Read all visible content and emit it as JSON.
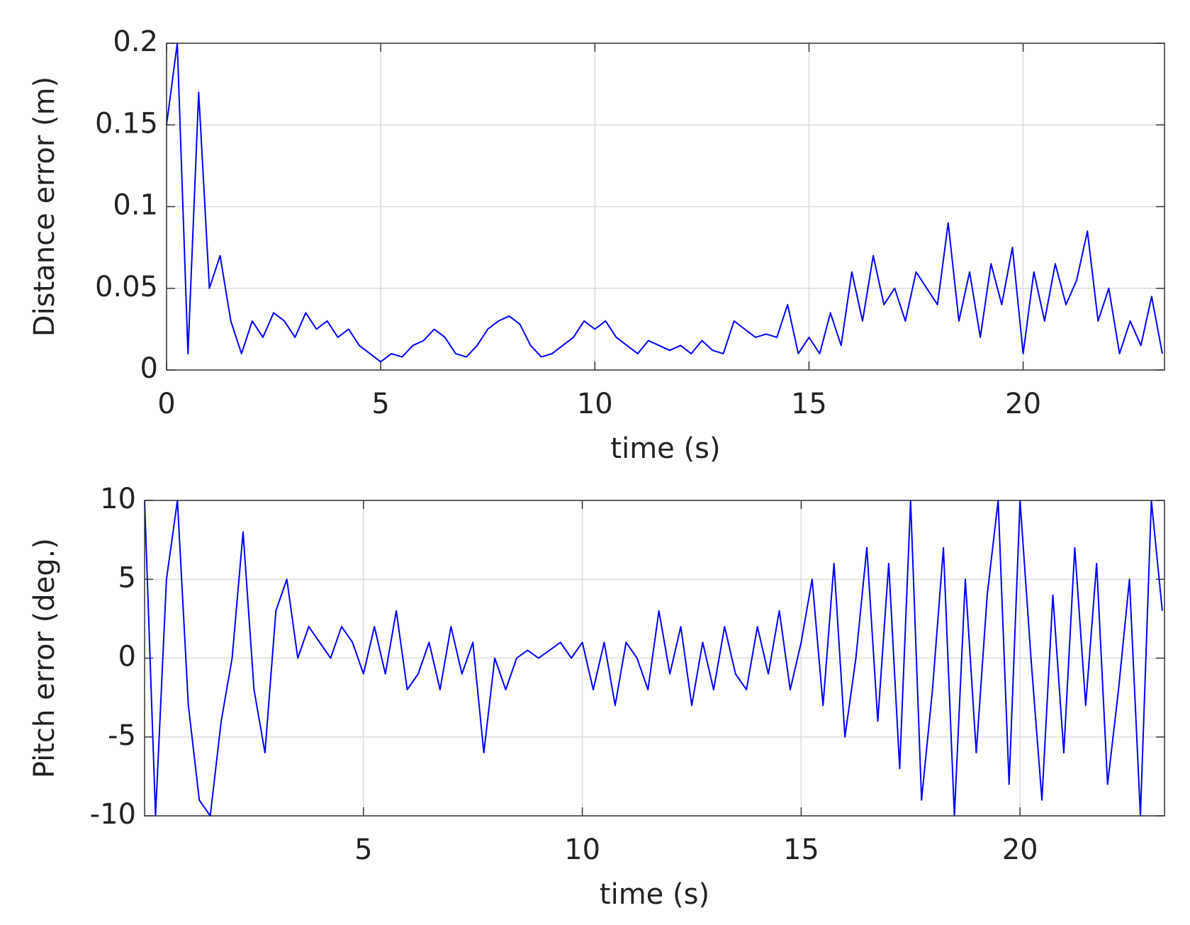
{
  "chart_data": [
    {
      "type": "line",
      "xlabel": "time (s)",
      "ylabel": "Distance error (m)",
      "xlim": [
        0,
        23.3
      ],
      "xticks": [
        0,
        5,
        10,
        15,
        20
      ],
      "ylim": [
        0,
        0.2
      ],
      "yticks": [
        0,
        0.05,
        0.1,
        0.15,
        0.2
      ],
      "grid": true,
      "x": [
        0,
        0.25,
        0.5,
        0.75,
        1,
        1.25,
        1.5,
        1.75,
        2,
        2.25,
        2.5,
        2.75,
        3,
        3.25,
        3.5,
        3.75,
        4,
        4.25,
        4.5,
        4.75,
        5,
        5.25,
        5.5,
        5.75,
        6,
        6.25,
        6.5,
        6.75,
        7,
        7.25,
        7.5,
        7.75,
        8,
        8.25,
        8.5,
        8.75,
        9,
        9.25,
        9.5,
        9.75,
        10,
        10.25,
        10.5,
        10.75,
        11,
        11.25,
        11.5,
        11.75,
        12,
        12.25,
        12.5,
        12.75,
        13,
        13.25,
        13.5,
        13.75,
        14,
        14.25,
        14.5,
        14.75,
        15,
        15.25,
        15.5,
        15.75,
        16,
        16.25,
        16.5,
        16.75,
        17,
        17.25,
        17.5,
        17.75,
        18,
        18.25,
        18.5,
        18.75,
        19,
        19.25,
        19.5,
        19.75,
        20,
        20.25,
        20.5,
        20.75,
        21,
        21.25,
        21.5,
        21.75,
        22,
        22.25,
        22.5,
        22.75,
        23,
        23.25
      ],
      "series": [
        {
          "color": "#0000ff",
          "values": [
            0.15,
            0.2,
            0.01,
            0.17,
            0.05,
            0.07,
            0.03,
            0.01,
            0.03,
            0.02,
            0.035,
            0.03,
            0.02,
            0.035,
            0.025,
            0.03,
            0.02,
            0.025,
            0.015,
            0.01,
            0.005,
            0.01,
            0.008,
            0.015,
            0.018,
            0.025,
            0.02,
            0.01,
            0.008,
            0.015,
            0.025,
            0.03,
            0.033,
            0.028,
            0.015,
            0.008,
            0.01,
            0.015,
            0.02,
            0.03,
            0.025,
            0.03,
            0.02,
            0.015,
            0.01,
            0.018,
            0.015,
            0.012,
            0.015,
            0.01,
            0.018,
            0.012,
            0.01,
            0.03,
            0.025,
            0.02,
            0.022,
            0.02,
            0.04,
            0.01,
            0.02,
            0.01,
            0.035,
            0.015,
            0.06,
            0.03,
            0.07,
            0.04,
            0.05,
            0.03,
            0.06,
            0.05,
            0.04,
            0.09,
            0.03,
            0.06,
            0.02,
            0.065,
            0.04,
            0.075,
            0.01,
            0.06,
            0.03,
            0.065,
            0.04,
            0.055,
            0.085,
            0.03,
            0.05,
            0.01,
            0.03,
            0.015,
            0.045,
            0.01
          ]
        }
      ]
    },
    {
      "type": "line",
      "xlabel": "time (s)",
      "ylabel": "Pitch error (deg.)",
      "xlim": [
        0,
        23.3
      ],
      "xticks": [
        5,
        10,
        15,
        20
      ],
      "ylim": [
        -10,
        10
      ],
      "yticks": [
        -10,
        -5,
        0,
        5,
        10
      ],
      "grid": true,
      "x": [
        0,
        0.25,
        0.5,
        0.75,
        1,
        1.25,
        1.5,
        1.75,
        2,
        2.25,
        2.5,
        2.75,
        3,
        3.25,
        3.5,
        3.75,
        4,
        4.25,
        4.5,
        4.75,
        5,
        5.25,
        5.5,
        5.75,
        6,
        6.25,
        6.5,
        6.75,
        7,
        7.25,
        7.5,
        7.75,
        8,
        8.25,
        8.5,
        8.75,
        9,
        9.25,
        9.5,
        9.75,
        10,
        10.25,
        10.5,
        10.75,
        11,
        11.25,
        11.5,
        11.75,
        12,
        12.25,
        12.5,
        12.75,
        13,
        13.25,
        13.5,
        13.75,
        14,
        14.25,
        14.5,
        14.75,
        15,
        15.25,
        15.5,
        15.75,
        16,
        16.25,
        16.5,
        16.75,
        17,
        17.25,
        17.5,
        17.75,
        18,
        18.25,
        18.5,
        18.75,
        19,
        19.25,
        19.5,
        19.75,
        20,
        20.25,
        20.5,
        20.75,
        21,
        21.25,
        21.5,
        21.75,
        22,
        22.25,
        22.5,
        22.75,
        23,
        23.25
      ],
      "series": [
        {
          "color": "#0000ff",
          "values": [
            10,
            -10,
            5,
            10,
            -3,
            -9,
            -10,
            -4,
            0,
            8,
            -2,
            -6,
            3,
            5,
            0,
            2,
            1,
            0,
            2,
            1,
            -1,
            2,
            -1,
            3,
            -2,
            -1,
            1,
            -2,
            2,
            -1,
            1,
            -6,
            0,
            -2,
            0,
            0.5,
            0,
            0.5,
            1,
            0,
            1,
            -2,
            1,
            -3,
            1,
            0,
            -2,
            3,
            -1,
            2,
            -3,
            1,
            -2,
            2,
            -1,
            -2,
            2,
            -1,
            3,
            -2,
            1,
            5,
            -3,
            6,
            -5,
            0,
            7,
            -4,
            6,
            -7,
            10,
            -9,
            -2,
            7,
            -10,
            5,
            -6,
            4,
            10,
            -8,
            10,
            0,
            -9,
            4,
            -6,
            7,
            -3,
            6,
            -8,
            -2,
            5,
            -10,
            10,
            3
          ]
        }
      ]
    }
  ]
}
